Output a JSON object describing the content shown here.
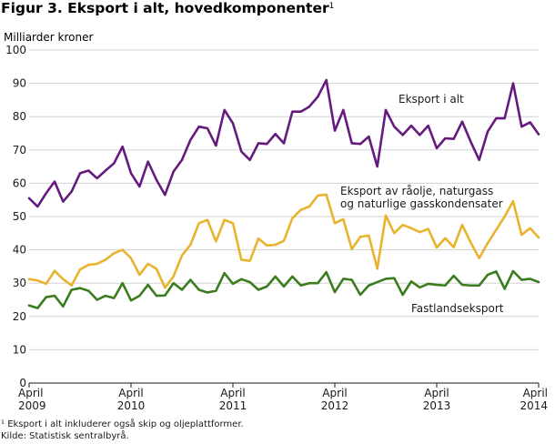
{
  "chart_data": {
    "type": "line",
    "title": "Figur 3. Eksport i alt, hovedkomponenter",
    "title_sup": "1",
    "ylabel": "Milliarder kroner",
    "xlabel": "",
    "ylim": [
      0,
      100
    ],
    "yticks": [
      0,
      10,
      20,
      30,
      40,
      50,
      60,
      70,
      80,
      90,
      100
    ],
    "grid": true,
    "x_start": "April 2009",
    "x_end": "April 2014",
    "x_ticks": [
      {
        "index": 0,
        "line1": "April",
        "line2": "2009"
      },
      {
        "index": 12,
        "line1": "April",
        "line2": "2010"
      },
      {
        "index": 24,
        "line1": "April",
        "line2": "2011"
      },
      {
        "index": 36,
        "line1": "April",
        "line2": "2012"
      },
      {
        "index": 48,
        "line1": "April",
        "line2": "2013"
      },
      {
        "index": 60,
        "line1": "April",
        "line2": "2014"
      }
    ],
    "series": [
      {
        "name": "Eksport i alt",
        "label_lines": [
          "Eksport i alt"
        ],
        "color": "#651b7e",
        "values": [
          55.5,
          53,
          57,
          60.5,
          54.5,
          57.5,
          63,
          63.8,
          61.5,
          63.8,
          66,
          71,
          63,
          59,
          66.5,
          61,
          56.5,
          63.5,
          67,
          73,
          77,
          76.5,
          71.3,
          82,
          78,
          69.5,
          67,
          72,
          71.8,
          74.8,
          72,
          81.5,
          81.5,
          83,
          86,
          91,
          75.8,
          82,
          72,
          71.8,
          74,
          65,
          82,
          77,
          74.5,
          77.3,
          74.5,
          77.3,
          70.5,
          73.5,
          73.3,
          78.5,
          72.5,
          67,
          75.5,
          79.5,
          79.5,
          90,
          77,
          78.3,
          74.7
        ]
      },
      {
        "name": "Eksport av råolje, naturgass og naturlige gasskondensater",
        "label_lines": [
          "Eksport av råolje, naturgass",
          "og naturlige gasskondensater"
        ],
        "color": "#e8b42e",
        "values": [
          31.2,
          30.8,
          29.8,
          33.7,
          31.2,
          29.3,
          34.1,
          35.5,
          35.8,
          37,
          39,
          40,
          37.5,
          32.5,
          35.8,
          34.3,
          28.6,
          32,
          38.3,
          41.5,
          48,
          49,
          42.5,
          49,
          48,
          37,
          36.7,
          43.4,
          41.3,
          41.5,
          42.7,
          49.5,
          52,
          53,
          56.3,
          56.6,
          48,
          49.2,
          40.2,
          43.9,
          44.3,
          34.3,
          50.3,
          45,
          47.5,
          46.5,
          45.3,
          46.3,
          40.7,
          43.5,
          40.8,
          47.5,
          42.2,
          37.5,
          42,
          46,
          50,
          54.6,
          44.5,
          46.5,
          43.7
        ]
      },
      {
        "name": "Fastlandseksport",
        "label_lines": [
          "Fastlandseksport"
        ],
        "color": "#3a7d1f",
        "values": [
          23.3,
          22.5,
          25.8,
          26.2,
          23,
          28,
          28.5,
          27.7,
          25,
          26.2,
          25.5,
          30,
          24.8,
          26.2,
          29.5,
          26.2,
          26.3,
          30,
          28,
          31,
          28,
          27.2,
          27.7,
          33,
          29.8,
          31.2,
          30.3,
          28,
          29,
          32,
          29,
          32,
          29.3,
          30,
          30,
          33.3,
          27.3,
          31.3,
          31,
          26.5,
          29.3,
          30.3,
          31.3,
          31.5,
          26.5,
          30.5,
          28.7,
          29.8,
          29.5,
          29.3,
          32.2,
          29.5,
          29.3,
          29.3,
          32.5,
          33.5,
          28.3,
          33.6,
          31,
          31.3,
          30.3
        ]
      }
    ],
    "footnotes": [
      "¹ Eksport i alt inkluderer også skip og oljeplattformer.",
      "Kilde: Statistisk sentralbyrå."
    ]
  }
}
